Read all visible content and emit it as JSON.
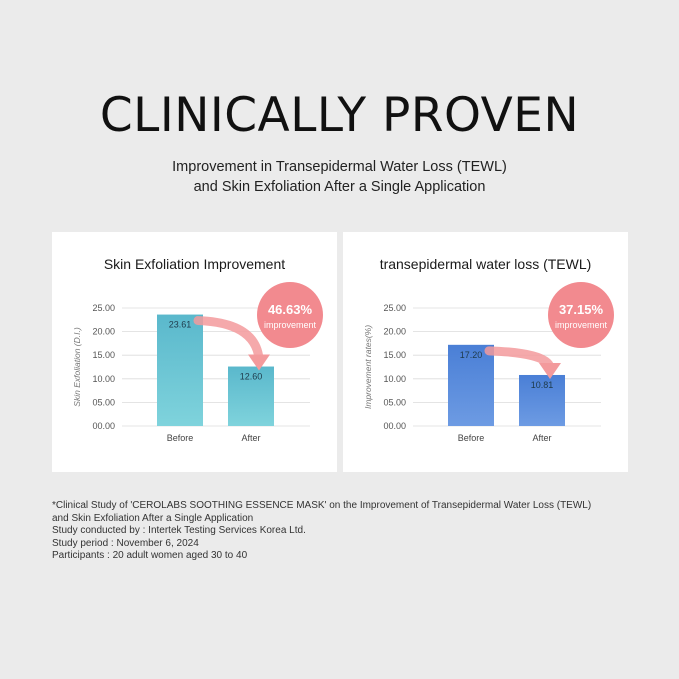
{
  "headline": "CLINICALLY PROVEN",
  "subtitle": {
    "line1": "Improvement in Transepidermal Water Loss (TEWL)",
    "line2": "and Skin Exfoliation After a Single Application"
  },
  "chart_data": [
    {
      "type": "bar",
      "title": "Skin Exfoliation Improvement",
      "ylabel": "Skin Exfoliation (D.I.)",
      "xlabel": "",
      "categories": [
        "Before",
        "After"
      ],
      "values": [
        23.61,
        12.6
      ],
      "value_labels": [
        "23.61",
        "12.60"
      ],
      "yticks": [
        "00.00",
        "05.00",
        "10.00",
        "15.00",
        "20.00",
        "25.00"
      ],
      "ylim": [
        0,
        25
      ],
      "grid": true,
      "bar_color_top": "#5ab8cc",
      "bar_color_bottom": "#7fd3dc",
      "badge": {
        "value": "46.63%",
        "label": "improvement"
      }
    },
    {
      "type": "bar",
      "title": "transepidermal water loss (TEWL)",
      "ylabel": "Improvement rates(%)",
      "xlabel": "",
      "categories": [
        "Before",
        "After"
      ],
      "values": [
        17.2,
        10.81
      ],
      "value_labels": [
        "17.20",
        "10.81"
      ],
      "yticks": [
        "00.00",
        "05.00",
        "10.00",
        "15.00",
        "20.00",
        "25.00"
      ],
      "ylim": [
        0,
        25
      ],
      "grid": true,
      "bar_color_top": "#4a7fd6",
      "bar_color_bottom": "#6d9be3",
      "badge": {
        "value": "37.15%",
        "label": "improvement"
      }
    }
  ],
  "badge_color": "#f28a8f",
  "arrow_color": "#f39a9c",
  "footnote": {
    "line1": "*Clinical Study of 'CEROLABS SOOTHING ESSENCE MASK' on the Improvement of Transepidermal Water Loss (TEWL)",
    "line2": "and Skin Exfoliation After a Single Application",
    "line3": "Study conducted by : Intertek Testing Services Korea Ltd.",
    "line4": "Study period : November 6, 2024",
    "line5": "Participants : 20 adult women aged 30 to 40"
  }
}
